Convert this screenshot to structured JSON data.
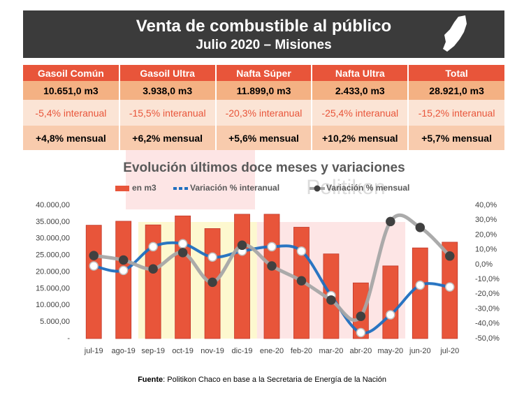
{
  "header": {
    "title": "Venta de combustible al público",
    "subtitle": "Julio 2020 – Misiones"
  },
  "table": {
    "rows": [
      [
        "Gasoil Común",
        "Gasoil Ultra",
        "Nafta Súper",
        "Nafta Ultra",
        "Total"
      ],
      [
        "10.651,0 m3",
        "3.938,0 m3",
        "11.899,0 m3",
        "2.433,0 m3",
        "28.921,0 m3"
      ],
      [
        "-5,4% interanual",
        "-15,5% interanual",
        "-20,3% interanual",
        "-25,4% interanual",
        "-15,2% interanual"
      ],
      [
        "+4,8% mensual",
        "+6,2% mensual",
        "+5,6% mensual",
        "+10,2% mensual",
        "+5,7% mensual"
      ]
    ]
  },
  "chart_data": {
    "type": "bar",
    "title": "Evolución últimos doce meses y variaciones",
    "watermark": "Politikon",
    "categories": [
      "jul-19",
      "ago-19",
      "sep-19",
      "oct-19",
      "nov-19",
      "dic-19",
      "ene-20",
      "feb-20",
      "mar-20",
      "abr-20",
      "may-20",
      "jun-20",
      "jul-20"
    ],
    "series": [
      {
        "name": "en m3",
        "type": "bar",
        "color": "#e8553a",
        "values": [
          34000,
          35200,
          34100,
          36800,
          33000,
          37300,
          37300,
          33400,
          25400,
          16700,
          21800,
          27200,
          28921
        ]
      },
      {
        "name": "Variación % interanual",
        "type": "line",
        "axis": "y2",
        "color": "#1f6fc0",
        "values": [
          -1,
          -4,
          12,
          14,
          5,
          9,
          12,
          9,
          -21,
          -46,
          -34,
          -14,
          -15.2
        ]
      },
      {
        "name": "Variación % mensual",
        "type": "line",
        "axis": "y2",
        "color": "#a6a6a6",
        "values": [
          6,
          3,
          -3,
          8,
          -12,
          13,
          -1,
          -11,
          -24,
          -35,
          29,
          25,
          5.7
        ]
      }
    ],
    "ylim": [
      0,
      40000
    ],
    "yticks": [
      {
        "value": 0,
        "label": "-"
      },
      {
        "value": 5000,
        "label": "5.000,00"
      },
      {
        "value": 10000,
        "label": "10.000,00"
      },
      {
        "value": 15000,
        "label": "15.000,00"
      },
      {
        "value": 20000,
        "label": "20.000,00"
      },
      {
        "value": 25000,
        "label": "25.000,00"
      },
      {
        "value": 30000,
        "label": "30.000,00"
      },
      {
        "value": 35000,
        "label": "35.000,00"
      },
      {
        "value": 40000,
        "label": "40.000,00"
      }
    ],
    "y2lim": [
      -50,
      40
    ],
    "y2ticks": [
      {
        "value": -50,
        "label": "-50,0%"
      },
      {
        "value": -40,
        "label": "-40,0%"
      },
      {
        "value": -30,
        "label": "-30,0%"
      },
      {
        "value": -20,
        "label": "-20,0%"
      },
      {
        "value": -10,
        "label": "-10,0%"
      },
      {
        "value": 0,
        "label": "0,0%"
      },
      {
        "value": 10,
        "label": "10,0%"
      },
      {
        "value": 20,
        "label": "20,0%"
      },
      {
        "value": 30,
        "label": "30,0%"
      },
      {
        "value": 40,
        "label": "40,0%"
      }
    ],
    "legend": "top"
  },
  "footer": {
    "label": "Fuente",
    "text": ": Politikon Chaco en base a la Secretaria de Energía de la Nación"
  }
}
